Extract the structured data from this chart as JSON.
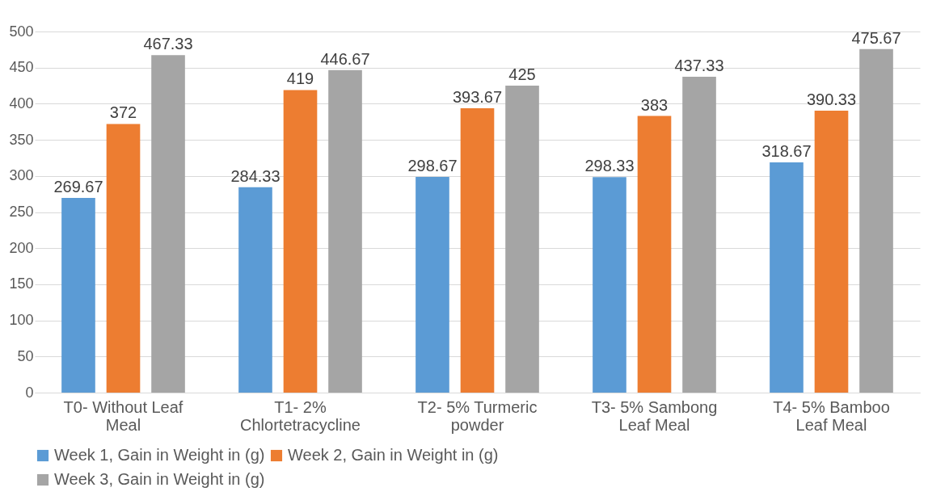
{
  "chart_data": {
    "type": "bar",
    "categories": [
      "T0- Without Leaf Meal",
      "T1- 2% Chlortetracycline",
      "T2- 5% Turmeric powder",
      "T3- 5% Sambong Leaf Meal",
      "T4- 5% Bamboo Leaf Meal"
    ],
    "series": [
      {
        "name": "Week 1, Gain in Weight in (g)",
        "color": "#5b9bd5",
        "values": [
          269.67,
          284.33,
          298.67,
          298.33,
          318.67
        ]
      },
      {
        "name": "Week 2, Gain in Weight in (g)",
        "color": "#ed7d31",
        "values": [
          372,
          419,
          393.67,
          383,
          390.33
        ]
      },
      {
        "name": "Week 3, Gain in Weight in (g)",
        "color": "#a5a5a5",
        "values": [
          467.33,
          446.67,
          425,
          437.33,
          475.67
        ]
      }
    ],
    "ylim": [
      0,
      500
    ],
    "yticks": [
      0,
      50,
      100,
      150,
      200,
      250,
      300,
      350,
      400,
      450,
      500
    ],
    "grid": "y",
    "legend": "bottom",
    "data_labels": true
  }
}
